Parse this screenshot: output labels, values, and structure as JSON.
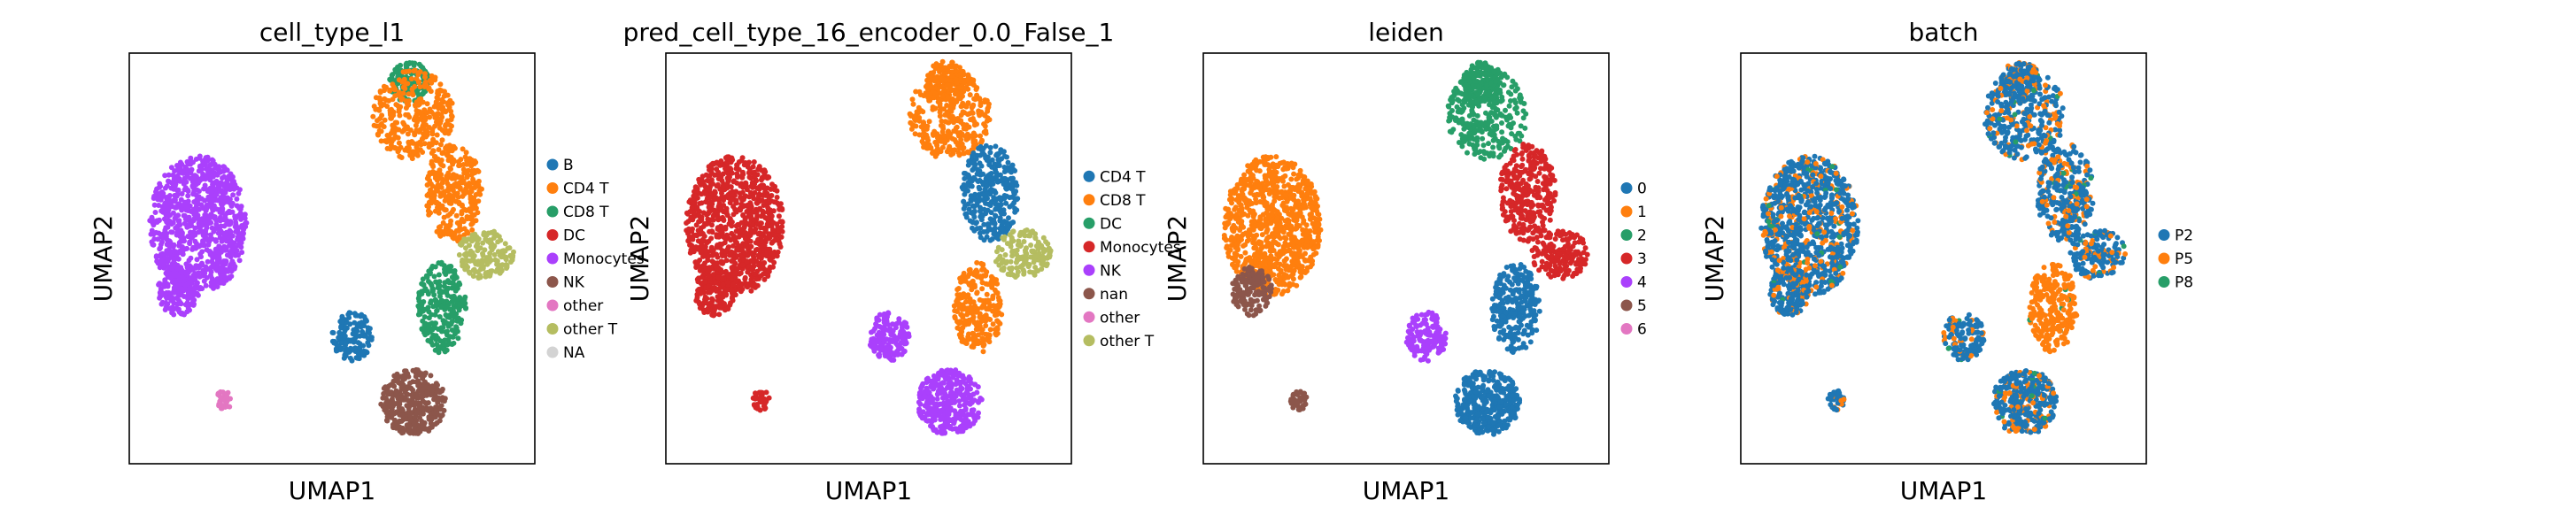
{
  "chart_data": [
    {
      "type": "scatter",
      "title": "cell_type_l1",
      "xlabel": "UMAP1",
      "ylabel": "UMAP2",
      "ticks": false,
      "grid": false,
      "legend_position": "right",
      "legend": [
        {
          "label": "B",
          "color": "#1f77b4"
        },
        {
          "label": "CD4 T",
          "color": "#ff7f0e"
        },
        {
          "label": "CD8 T",
          "color": "#279e68"
        },
        {
          "label": "DC",
          "color": "#d62728"
        },
        {
          "label": "Monocytes",
          "color": "#aa40fc"
        },
        {
          "label": "NK",
          "color": "#8c564b"
        },
        {
          "label": "other",
          "color": "#e377c2"
        },
        {
          "label": "other T",
          "color": "#b5bd61"
        },
        {
          "label": "NA",
          "color": "#d3d3d3"
        }
      ]
    },
    {
      "type": "scatter",
      "title": "pred_cell_type_16_encoder_0.0_False_1",
      "xlabel": "UMAP1",
      "ylabel": "UMAP2",
      "ticks": false,
      "grid": false,
      "legend_position": "right",
      "legend": [
        {
          "label": "CD4 T",
          "color": "#1f77b4"
        },
        {
          "label": "CD8 T",
          "color": "#ff7f0e"
        },
        {
          "label": "DC",
          "color": "#279e68"
        },
        {
          "label": "Monocytes",
          "color": "#d62728"
        },
        {
          "label": "NK",
          "color": "#aa40fc"
        },
        {
          "label": "nan",
          "color": "#8c564b"
        },
        {
          "label": "other",
          "color": "#e377c2"
        },
        {
          "label": "other T",
          "color": "#b5bd61"
        }
      ]
    },
    {
      "type": "scatter",
      "title": "leiden",
      "xlabel": "UMAP1",
      "ylabel": "UMAP2",
      "ticks": false,
      "grid": false,
      "legend_position": "right",
      "legend": [
        {
          "label": "0",
          "color": "#1f77b4"
        },
        {
          "label": "1",
          "color": "#ff7f0e"
        },
        {
          "label": "2",
          "color": "#279e68"
        },
        {
          "label": "3",
          "color": "#d62728"
        },
        {
          "label": "4",
          "color": "#aa40fc"
        },
        {
          "label": "5",
          "color": "#8c564b"
        },
        {
          "label": "6",
          "color": "#e377c2"
        }
      ]
    },
    {
      "type": "scatter",
      "title": "batch",
      "xlabel": "UMAP1",
      "ylabel": "UMAP2",
      "ticks": false,
      "grid": false,
      "legend_position": "right",
      "legend": [
        {
          "label": "P2",
          "color": "#1f77b4"
        },
        {
          "label": "P5",
          "color": "#ff7f0e"
        },
        {
          "label": "P8",
          "color": "#279e68"
        }
      ]
    }
  ]
}
